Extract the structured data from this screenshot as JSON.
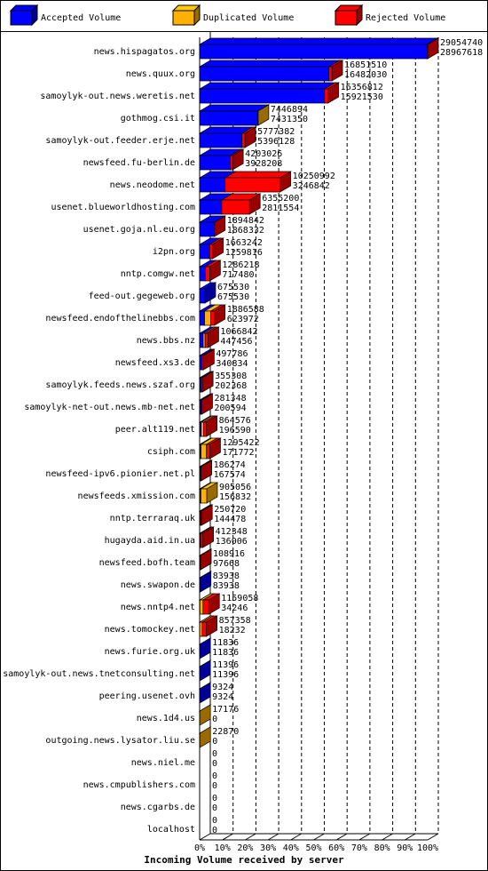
{
  "chart_data": {
    "type": "stacked-bar-3d",
    "orientation": "horizontal",
    "x_label": "Incoming Volume received by server",
    "categories": [
      "news.hispagatos.org",
      "news.quux.org",
      "samoylyk-out.news.weretis.net",
      "gothmog.csi.it",
      "samoylyk-out.feeder.erje.net",
      "newsfeed.fu-berlin.de",
      "news.neodome.net",
      "usenet.blueworldhosting.com",
      "usenet.goja.nl.eu.org",
      "i2pn.org",
      "nntp.comgw.net",
      "feed-out.gegeweb.org",
      "newsfeed.endofthelinebbs.com",
      "news.bbs.nz",
      "newsfeed.xs3.de",
      "samoylyk.feeds.news.szaf.org",
      "samoylyk-net-out.news.mb-net.net",
      "peer.alt119.net",
      "csiph.com",
      "newsfeed-ipv6.pionier.net.pl",
      "newsfeeds.xmission.com",
      "nntp.terraraq.uk",
      "hugayda.aid.in.ua",
      "newsfeed.bofh.team",
      "news.swapon.de",
      "news.nntp4.net",
      "news.tomockey.net",
      "news.furie.org.uk",
      "samoylyk-out.news.tnetconsulting.net",
      "peering.usenet.ovh",
      "news.1d4.us",
      "outgoing.news.lysator.liu.se",
      "news.niel.me",
      "news.cmpublishers.com",
      "news.cgarbs.de",
      "localhost"
    ],
    "totals": [
      29054740,
      16851510,
      16356812,
      7446894,
      5777382,
      4203026,
      10250992,
      6355200,
      1894842,
      1663242,
      1286218,
      675530,
      1886588,
      1066842,
      497786,
      355308,
      281348,
      864576,
      1295422,
      186274,
      905056,
      250720,
      412348,
      108916,
      83938,
      1159058,
      857358,
      11836,
      11396,
      9324,
      17176,
      22870,
      0,
      0,
      0,
      0
    ],
    "series": [
      {
        "name": "Accepted Volume",
        "color": "#0000ff",
        "values": [
          28967618,
          16482030,
          15921530,
          7431350,
          5396128,
          3928208,
          3246842,
          2811554,
          1868332,
          1259816,
          717480,
          675530,
          623972,
          447456,
          340834,
          202368,
          200594,
          196590,
          171772,
          167574,
          156832,
          144478,
          136006,
          97668,
          83938,
          34246,
          18232,
          11836,
          11396,
          9324,
          0,
          0,
          0,
          0,
          0,
          0
        ]
      },
      {
        "name": "Duplicated Volume",
        "color": "#ffb000",
        "values": [
          0,
          0,
          0,
          15544,
          0,
          0,
          0,
          0,
          0,
          0,
          0,
          0,
          800000,
          250000,
          0,
          0,
          0,
          300000,
          700000,
          0,
          748224,
          0,
          0,
          0,
          0,
          400000,
          300000,
          0,
          0,
          0,
          17176,
          22870,
          0,
          0,
          0,
          0
        ]
      },
      {
        "name": "Rejected Volume",
        "color": "#ff0000",
        "values": [
          87122,
          369480,
          435282,
          0,
          381254,
          274818,
          7004150,
          3543646,
          26510,
          403426,
          568738,
          0,
          462616,
          369386,
          156952,
          152940,
          80754,
          367986,
          423650,
          18700,
          0,
          106242,
          276342,
          11248,
          0,
          724812,
          539126,
          0,
          0,
          0,
          0,
          0,
          0,
          0,
          0,
          0
        ]
      }
    ],
    "xlim": [
      0,
      29054740
    ],
    "xticks": [
      {
        "value": 0,
        "label": "0%"
      },
      {
        "value": 2905474,
        "label": "10%"
      },
      {
        "value": 5810948,
        "label": "20%"
      },
      {
        "value": 8716422,
        "label": "30%"
      },
      {
        "value": 11621896,
        "label": "40%"
      },
      {
        "value": 14527370,
        "label": "50%"
      },
      {
        "value": 17432844,
        "label": "60%"
      },
      {
        "value": 20338318,
        "label": "70%"
      },
      {
        "value": 23243792,
        "label": "80%"
      },
      {
        "value": 26149266,
        "label": "90%"
      },
      {
        "value": 29054740,
        "label": "100%"
      }
    ],
    "grid": true
  }
}
